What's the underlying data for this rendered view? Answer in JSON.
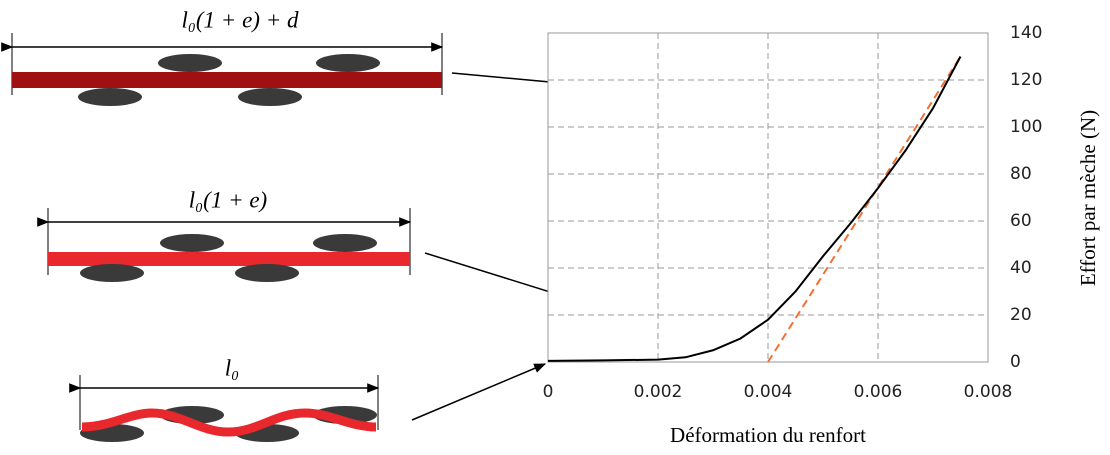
{
  "diagram": {
    "labels": [
      "l₀(1 + e) + d",
      "l₀(1 + e)",
      "l₀"
    ]
  },
  "chart_data": {
    "type": "line",
    "xlabel": "Déformation du renfort",
    "ylabel": "Effort par mèche (N)",
    "xlim": [
      0,
      0.008
    ],
    "xticks": [
      0,
      0.002,
      0.004,
      0.006,
      0.008
    ],
    "ylim": [
      0,
      140
    ],
    "yticks": [
      0,
      20,
      40,
      60,
      80,
      100,
      120,
      140
    ],
    "grid": true,
    "series": [
      {
        "color": "#000000",
        "dashed": false,
        "x": [
          0,
          0.001,
          0.002,
          0.0025,
          0.003,
          0.0035,
          0.004,
          0.0045,
          0.005,
          0.0055,
          0.006,
          0.0065,
          0.007,
          0.0075
        ],
        "values": [
          0.5,
          0.7,
          1,
          2,
          5,
          10,
          18,
          30,
          45,
          59,
          74,
          90,
          108,
          130
        ]
      },
      {
        "color": "#f07030",
        "dashed": true,
        "x": [
          0.004,
          0.0075
        ],
        "values": [
          0,
          130
        ]
      }
    ]
  }
}
